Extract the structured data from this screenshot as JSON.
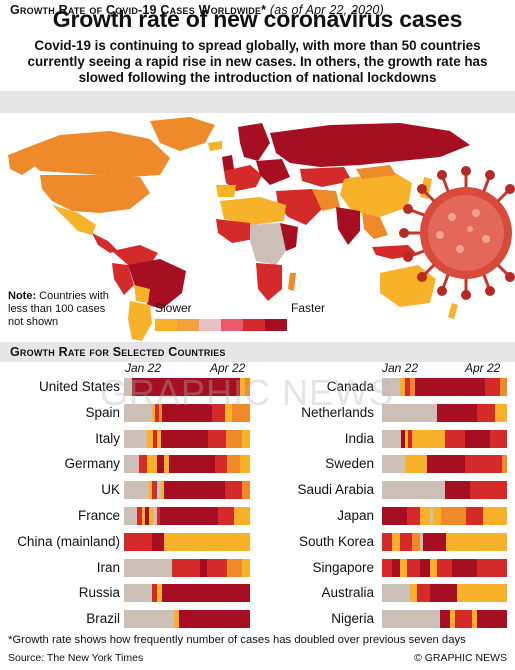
{
  "title": "Growth rate of new coronavirus cases",
  "subtitle": "Covid-19 is continuing to spread globally, with more than 50 countries currently seeing a rapid rise in new cases. In others, the growth rate has slowed following the introduction of national lockdowns",
  "map_section": {
    "header": "Growth Rate of Covid-19 Cases Worldwide*",
    "date": "(as of Apr 22, 2020)",
    "note_bold": "Note:",
    "note_text": "Countries with less than 100 cases not shown",
    "legend_slower": "Slower",
    "legend_faster": "Faster"
  },
  "colors": {
    "grey": "#cbbfb8",
    "yellow": "#f7b22a",
    "orange": "#ef8a2a",
    "red": "#d42a2a",
    "darkred": "#a60f22",
    "pink": "#e79aa0",
    "lightgrey": "#d9d9d9"
  },
  "legend_scale": [
    "#f7b22a",
    "#f3a13a",
    "#e8c0c5",
    "#ea5a6a",
    "#d42a2a",
    "#a60f22"
  ],
  "countries_section": {
    "header": "Growth Rate for Selected Countries",
    "date_start": "Jan 22",
    "date_end": "Apr 22"
  },
  "chart_data": {
    "type": "heatmap",
    "x": [
      "Jan 22",
      "Apr 22"
    ],
    "legend": [
      "Slower",
      "Faster"
    ],
    "left_column": [
      {
        "name": "United States",
        "segments": [
          [
            "#cbbfb8",
            0.06
          ],
          [
            "#a60f22",
            0.86
          ],
          [
            "#f7b22a",
            0.04
          ],
          [
            "#ef8a2a",
            0.04
          ]
        ]
      },
      {
        "name": "Spain",
        "segments": [
          [
            "#cbbfb8",
            0.22
          ],
          [
            "#f7b22a",
            0.03
          ],
          [
            "#d42a2a",
            0.03
          ],
          [
            "#ef8a2a",
            0.02
          ],
          [
            "#a60f22",
            0.4
          ],
          [
            "#d42a2a",
            0.1
          ],
          [
            "#f7b22a",
            0.06
          ],
          [
            "#ef8a2a",
            0.14
          ]
        ]
      },
      {
        "name": "Italy",
        "segments": [
          [
            "#cbbfb8",
            0.18
          ],
          [
            "#f7b22a",
            0.05
          ],
          [
            "#d42a2a",
            0.03
          ],
          [
            "#f7b22a",
            0.03
          ],
          [
            "#a60f22",
            0.38
          ],
          [
            "#d42a2a",
            0.14
          ],
          [
            "#ef8a2a",
            0.13
          ],
          [
            "#f7b22a",
            0.06
          ]
        ]
      },
      {
        "name": "Germany",
        "segments": [
          [
            "#cbbfb8",
            0.12
          ],
          [
            "#d42a2a",
            0.06
          ],
          [
            "#f7b22a",
            0.08
          ],
          [
            "#a60f22",
            0.06
          ],
          [
            "#f7b22a",
            0.04
          ],
          [
            "#a60f22",
            0.36
          ],
          [
            "#d42a2a",
            0.1
          ],
          [
            "#ef8a2a",
            0.1
          ],
          [
            "#f7b22a",
            0.08
          ]
        ]
      },
      {
        "name": "UK",
        "segments": [
          [
            "#cbbfb8",
            0.2
          ],
          [
            "#f7b22a",
            0.02
          ],
          [
            "#d42a2a",
            0.04
          ],
          [
            "#cbbfb8",
            0.03
          ],
          [
            "#f7b22a",
            0.03
          ],
          [
            "#a60f22",
            0.48
          ],
          [
            "#d42a2a",
            0.14
          ],
          [
            "#ef8a2a",
            0.06
          ]
        ]
      },
      {
        "name": "France",
        "segments": [
          [
            "#cbbfb8",
            0.1
          ],
          [
            "#d42a2a",
            0.04
          ],
          [
            "#f7b22a",
            0.03
          ],
          [
            "#a60f22",
            0.03
          ],
          [
            "#f7b22a",
            0.03
          ],
          [
            "#cbbfb8",
            0.03
          ],
          [
            "#d42a2a",
            0.03
          ],
          [
            "#a60f22",
            0.46
          ],
          [
            "#d42a2a",
            0.12
          ],
          [
            "#f7b22a",
            0.13
          ]
        ]
      },
      {
        "name": "China (mainland)",
        "segments": [
          [
            "#d42a2a",
            0.22
          ],
          [
            "#a60f22",
            0.1
          ],
          [
            "#f7b22a",
            0.68
          ]
        ]
      },
      {
        "name": "Iran",
        "segments": [
          [
            "#cbbfb8",
            0.38
          ],
          [
            "#d42a2a",
            0.22
          ],
          [
            "#a60f22",
            0.06
          ],
          [
            "#d42a2a",
            0.16
          ],
          [
            "#ef8a2a",
            0.12
          ],
          [
            "#f7b22a",
            0.06
          ]
        ]
      },
      {
        "name": "Russia",
        "segments": [
          [
            "#cbbfb8",
            0.22
          ],
          [
            "#d42a2a",
            0.04
          ],
          [
            "#f7b22a",
            0.04
          ],
          [
            "#a60f22",
            0.7
          ]
        ]
      },
      {
        "name": "Brazil",
        "segments": [
          [
            "#cbbfb8",
            0.4
          ],
          [
            "#f7b22a",
            0.04
          ],
          [
            "#a60f22",
            0.56
          ]
        ]
      }
    ],
    "right_column": [
      {
        "name": "Canada",
        "segments": [
          [
            "#cbbfb8",
            0.14
          ],
          [
            "#f7b22a",
            0.04
          ],
          [
            "#d42a2a",
            0.04
          ],
          [
            "#ef8a2a",
            0.04
          ],
          [
            "#a60f22",
            0.56
          ],
          [
            "#d42a2a",
            0.12
          ],
          [
            "#ef8a2a",
            0.06
          ]
        ]
      },
      {
        "name": "Netherlands",
        "segments": [
          [
            "#cbbfb8",
            0.44
          ],
          [
            "#a60f22",
            0.32
          ],
          [
            "#d42a2a",
            0.14
          ],
          [
            "#f7b22a",
            0.1
          ]
        ]
      },
      {
        "name": "India",
        "segments": [
          [
            "#cbbfb8",
            0.15
          ],
          [
            "#a60f22",
            0.03
          ],
          [
            "#f7b22a",
            0.03
          ],
          [
            "#d42a2a",
            0.03
          ],
          [
            "#f7b22a",
            0.26
          ],
          [
            "#d42a2a",
            0.16
          ],
          [
            "#a60f22",
            0.2
          ],
          [
            "#d42a2a",
            0.14
          ]
        ]
      },
      {
        "name": "Sweden",
        "segments": [
          [
            "#cbbfb8",
            0.18
          ],
          [
            "#f7b22a",
            0.18
          ],
          [
            "#a60f22",
            0.3
          ],
          [
            "#d42a2a",
            0.3
          ],
          [
            "#ef8a2a",
            0.04
          ]
        ]
      },
      {
        "name": "Saudi Arabia",
        "segments": [
          [
            "#cbbfb8",
            0.5
          ],
          [
            "#a60f22",
            0.2
          ],
          [
            "#d42a2a",
            0.3
          ]
        ]
      },
      {
        "name": "Japan",
        "segments": [
          [
            "#a60f22",
            0.2
          ],
          [
            "#d42a2a",
            0.1
          ],
          [
            "#f7b22a",
            0.08
          ],
          [
            "#cbbfb8",
            0.03
          ],
          [
            "#f7b22a",
            0.06
          ],
          [
            "#ef8a2a",
            0.2
          ],
          [
            "#d42a2a",
            0.14
          ],
          [
            "#f7b22a",
            0.19
          ]
        ]
      },
      {
        "name": "South Korea",
        "segments": [
          [
            "#d42a2a",
            0.08
          ],
          [
            "#f7b22a",
            0.06
          ],
          [
            "#d42a2a",
            0.1
          ],
          [
            "#ef8a2a",
            0.06
          ],
          [
            "#cbbfb8",
            0.03
          ],
          [
            "#a60f22",
            0.18
          ],
          [
            "#f7b22a",
            0.49
          ]
        ]
      },
      {
        "name": "Singapore",
        "segments": [
          [
            "#d42a2a",
            0.08
          ],
          [
            "#a60f22",
            0.06
          ],
          [
            "#f7b22a",
            0.06
          ],
          [
            "#d42a2a",
            0.1
          ],
          [
            "#a60f22",
            0.08
          ],
          [
            "#f7b22a",
            0.06
          ],
          [
            "#d42a2a",
            0.12
          ],
          [
            "#a60f22",
            0.2
          ],
          [
            "#d42a2a",
            0.24
          ]
        ]
      },
      {
        "name": "Australia",
        "segments": [
          [
            "#cbbfb8",
            0.22
          ],
          [
            "#f7b22a",
            0.06
          ],
          [
            "#d42a2a",
            0.1
          ],
          [
            "#a60f22",
            0.22
          ],
          [
            "#f7b22a",
            0.4
          ]
        ]
      },
      {
        "name": "Nigeria",
        "segments": [
          [
            "#cbbfb8",
            0.46
          ],
          [
            "#a60f22",
            0.08
          ],
          [
            "#f7b22a",
            0.04
          ],
          [
            "#d42a2a",
            0.14
          ],
          [
            "#f7b22a",
            0.04
          ],
          [
            "#a60f22",
            0.24
          ]
        ]
      }
    ]
  },
  "watermark": "GRAPHIC NEWS",
  "footnote": "*Growth rate shows how frequently number of cases has doubled over previous seven days",
  "source": "Source: The New York Times",
  "credit": "© GRAPHIC NEWS"
}
